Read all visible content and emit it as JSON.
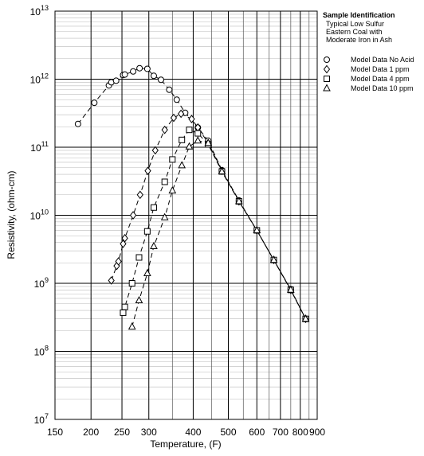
{
  "chart_data": {
    "type": "scatter",
    "xlabel": "Temperature, (F)",
    "ylabel": "Resistivity, (ohm-cm)",
    "xscale": "reciprocal-rankine",
    "yscale": "log",
    "grid": true,
    "minor_grid": true,
    "xlim": [
      150,
      900
    ],
    "xticks": [
      150,
      200,
      250,
      300,
      400,
      500,
      600,
      700,
      800,
      900
    ],
    "xminor_ticks": [
      350,
      450,
      550,
      650,
      750,
      850
    ],
    "ylim": [
      10000000.0,
      10000000000000.0
    ],
    "yticks": [
      {
        "value": 10000000.0,
        "label": "10",
        "exponent": "7"
      },
      {
        "value": 100000000.0,
        "label": "10",
        "exponent": "8"
      },
      {
        "value": 1000000000.0,
        "label": "10",
        "exponent": "9"
      },
      {
        "value": 10000000000.0,
        "label": "10",
        "exponent": "10"
      },
      {
        "value": 100000000000.0,
        "label": "10",
        "exponent": "11"
      },
      {
        "value": 1000000000000.0,
        "label": "10",
        "exponent": "12"
      },
      {
        "value": 10000000000000.0,
        "label": "10",
        "exponent": "13"
      }
    ],
    "legend_title": "Sample Identification",
    "legend_subtitle": [
      "Typical Low Sulfur",
      "Eastern Coal with",
      "Moderate Iron in Ash"
    ],
    "legend": "right",
    "series": [
      {
        "name": "Model Data No Acid",
        "marker": "circle",
        "color": "#000000",
        "x": [
          181,
          205,
          228,
          232,
          240,
          252,
          255,
          270,
          282,
          297,
          310,
          325,
          343,
          360,
          380,
          412,
          440,
          480,
          535,
          600,
          670,
          750,
          830
        ],
        "values": [
          220000000000.0,
          450000000000.0,
          810000000000.0,
          900000000000.0,
          950000000000.0,
          1150000000000.0,
          1170000000000.0,
          1300000000000.0,
          1450000000000.0,
          1420000000000.0,
          1120000000000.0,
          980000000000.0,
          700000000000.0,
          500000000000.0,
          320000000000.0,
          195000000000.0,
          125000000000.0,
          46000000000.0,
          16500000000.0,
          6000000000.0,
          2200000000.0,
          820000000.0,
          300000000.0
        ]
      },
      {
        "name": "Model Data 1 ppm",
        "marker": "diamond",
        "color": "#000000",
        "x": [
          232,
          241,
          244,
          252,
          255,
          270,
          283,
          298,
          313,
          333,
          353,
          370,
          396,
          412,
          440,
          480,
          535,
          600,
          670,
          750,
          830
        ],
        "values": [
          1100000000.0,
          1800000000.0,
          2100000000.0,
          3800000000.0,
          4600000000.0,
          10000000000.0,
          20000000000.0,
          45000000000.0,
          90000000000.0,
          180000000000.0,
          270000000000.0,
          310000000000.0,
          260000000000.0,
          195000000000.0,
          115000000000.0,
          45000000000.0,
          16000000000.0,
          6000000000.0,
          2200000000.0,
          800000000.0,
          300000000.0
        ]
      },
      {
        "name": "Model Data 4 ppm",
        "marker": "square",
        "color": "#000000",
        "x": [
          252,
          255,
          268,
          281,
          297,
          310,
          333,
          350,
          372,
          390,
          412,
          440,
          480,
          535,
          600,
          670,
          750,
          830
        ],
        "values": [
          370000000.0,
          450000000.0,
          1000000000.0,
          2400000000.0,
          5800000000.0,
          13000000000.0,
          31000000000.0,
          66000000000.0,
          128000000000.0,
          180000000000.0,
          160000000000.0,
          110000000000.0,
          44000000000.0,
          16000000000.0,
          6000000000.0,
          2200000000.0,
          800000000.0,
          300000000.0
        ]
      },
      {
        "name": "Model Data 10 ppm",
        "marker": "triangle",
        "color": "#000000",
        "x": [
          268,
          281,
          297,
          310,
          333,
          350,
          372,
          390,
          412,
          440,
          480,
          535,
          600,
          670,
          750,
          830
        ],
        "values": [
          230000000.0,
          560000000.0,
          1400000000.0,
          3500000000.0,
          9300000000.0,
          23000000000.0,
          54000000000.0,
          102000000000.0,
          125000000000.0,
          115000000000.0,
          44000000000.0,
          16000000000.0,
          6000000000.0,
          2200000000.0,
          800000000.0,
          300000000.0
        ]
      }
    ]
  }
}
